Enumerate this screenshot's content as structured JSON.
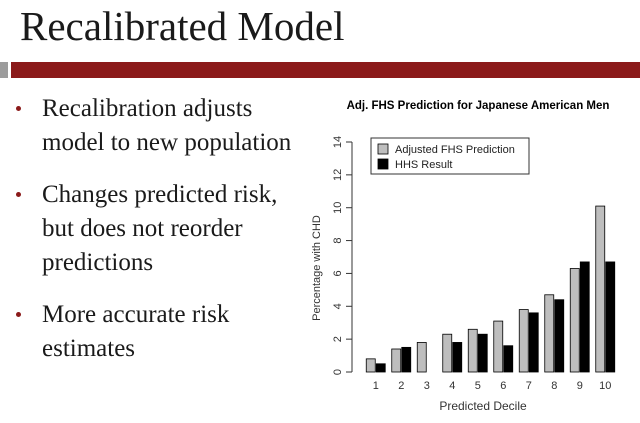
{
  "slide": {
    "title": "Recalibrated Model",
    "bullets": [
      "Recalibration adjusts model to new population",
      "Changes predicted risk, but does not reorder predictions",
      "More accurate risk estimates"
    ]
  },
  "colors": {
    "accent": "#8b1a1a",
    "title_bar_grey": "#9c9c9c",
    "series_adjusted": "#bebebe",
    "series_hhs": "#000000"
  },
  "chart_data": {
    "type": "bar",
    "title": "Adj. FHS Prediction for Japanese American Men",
    "xlabel": "Predicted Decile",
    "ylabel": "Percentage with CHD",
    "categories": [
      "1",
      "2",
      "3",
      "4",
      "5",
      "6",
      "7",
      "8",
      "9",
      "10"
    ],
    "ylim": [
      0,
      14
    ],
    "yticks": [
      0,
      2,
      4,
      6,
      8,
      10,
      12,
      14
    ],
    "grid": false,
    "legend": "top-left",
    "series": [
      {
        "name": "Adjusted FHS Prediction",
        "values": [
          0.8,
          1.4,
          1.8,
          2.3,
          2.6,
          3.1,
          3.8,
          4.7,
          6.3,
          10.1
        ]
      },
      {
        "name": "HHS Result",
        "values": [
          0.5,
          1.5,
          0.0,
          1.8,
          2.3,
          1.6,
          3.6,
          4.4,
          6.7,
          6.7
        ]
      }
    ]
  }
}
